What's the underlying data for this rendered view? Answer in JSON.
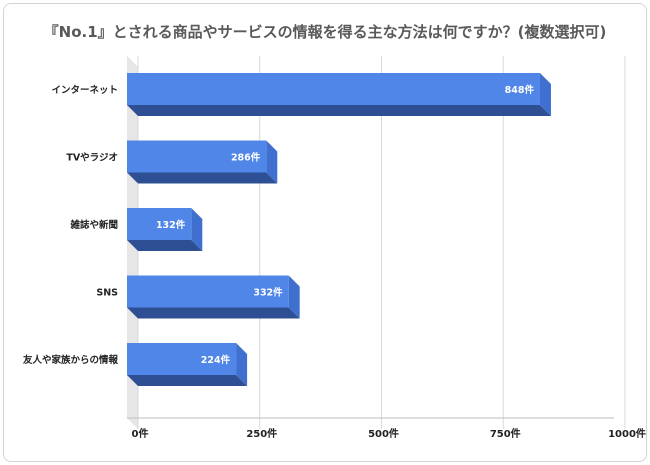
{
  "chart_data": {
    "type": "bar",
    "orientation": "horizontal",
    "style": "3d",
    "title": "『No.1』とされる商品やサービスの情報を得る主な方法は何ですか？(複数選択可)",
    "categories": [
      "インターネット",
      "TVやラジオ",
      "雑誌や新聞",
      "SNS",
      "友人や家族からの情報"
    ],
    "values": [
      848,
      286,
      132,
      332,
      224
    ],
    "value_labels": [
      "848件",
      "286件",
      "132件",
      "332件",
      "224件"
    ],
    "xlim": [
      0,
      1000
    ],
    "xticks": [
      0,
      250,
      500,
      750,
      1000
    ],
    "xtick_labels": [
      "0件",
      "250件",
      "500件",
      "750件",
      "1000件"
    ],
    "grid": true,
    "legend": "none",
    "colors": {
      "bar_front": "#5086e8",
      "bar_side": "#3f6fcf",
      "bar_bottom": "#2f4f95",
      "grid": "#d9d9d9",
      "floor": "#e6e6e6"
    }
  }
}
